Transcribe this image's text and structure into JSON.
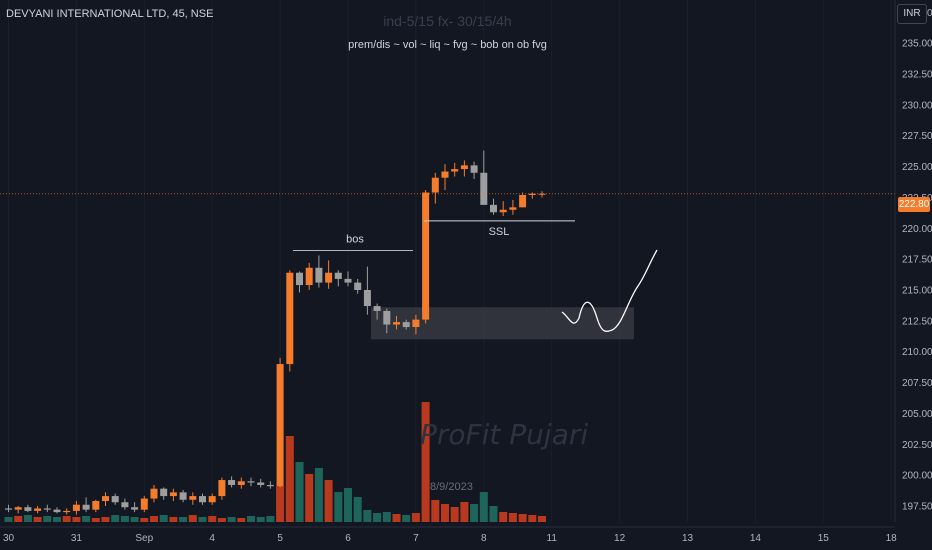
{
  "header": {
    "symbol_title": "DEVYANI INTERNATIONAL LTD, 45, NSE",
    "watermark_line1": "ind-5/15 fx- 30/15/4h",
    "watermark_line2": "prem/dis ~ vol ~ liq ~ fvg ~ bob on ob fvg",
    "brand_watermark": "ProFit Pujari",
    "date_watermark": "8/9/2023",
    "currency_button": "INR"
  },
  "price_axis": {
    "current_price_label": "222.80",
    "tick_labels": [
      "237.50",
      "235.00",
      "232.50",
      "230.00",
      "227.50",
      "225.00",
      "222.50",
      "220.00",
      "217.50",
      "215.00",
      "212.50",
      "210.00",
      "207.50",
      "205.00",
      "202.50",
      "200.00",
      "197.50"
    ]
  },
  "colors": {
    "background": "#131722",
    "up": "#f57c2b",
    "down": "#9e9e9e",
    "vol_up": "#cc3d1f",
    "vol_down": "#1f6e62",
    "price_line": "#f57c2b",
    "zone": "#3b3d44"
  },
  "chart_data": {
    "type": "candlestick",
    "ylim": [
      196.2,
      238.5
    ],
    "x_tick_labels": [
      "30",
      "31",
      "Sep",
      "4",
      "5",
      "6",
      "7",
      "8",
      "11",
      "12",
      "13",
      "14",
      "15",
      "18"
    ],
    "x_tick_session_positions": [
      0,
      7,
      14,
      21,
      28,
      35,
      42,
      49,
      56,
      63,
      70,
      77,
      84,
      91
    ],
    "candles_ohlc": [
      [
        197.3,
        197.6,
        197.0,
        197.2
      ],
      [
        197.2,
        197.5,
        196.9,
        197.4
      ],
      [
        197.4,
        197.6,
        197.0,
        197.1
      ],
      [
        197.1,
        197.5,
        196.9,
        197.3
      ],
      [
        197.3,
        197.6,
        197.0,
        197.2
      ],
      [
        197.2,
        197.4,
        196.9,
        197.0
      ],
      [
        197.0,
        197.3,
        196.8,
        197.1
      ],
      [
        197.1,
        197.9,
        196.8,
        197.6
      ],
      [
        197.6,
        198.2,
        197.0,
        197.2
      ],
      [
        197.2,
        198.0,
        197.0,
        197.9
      ],
      [
        197.9,
        198.6,
        197.5,
        198.3
      ],
      [
        198.3,
        198.5,
        197.6,
        197.8
      ],
      [
        197.8,
        198.1,
        197.2,
        197.4
      ],
      [
        197.4,
        197.8,
        197.0,
        197.2
      ],
      [
        197.2,
        198.3,
        197.0,
        198.1
      ],
      [
        198.1,
        199.2,
        197.8,
        198.9
      ],
      [
        198.9,
        199.0,
        198.0,
        198.3
      ],
      [
        198.3,
        198.9,
        197.9,
        198.6
      ],
      [
        198.6,
        198.8,
        197.8,
        198.0
      ],
      [
        198.0,
        198.6,
        197.6,
        198.3
      ],
      [
        198.3,
        198.5,
        197.6,
        197.8
      ],
      [
        197.8,
        198.5,
        197.6,
        198.3
      ],
      [
        198.3,
        199.8,
        198.0,
        199.6
      ],
      [
        199.6,
        199.9,
        199.0,
        199.2
      ],
      [
        199.2,
        199.8,
        198.9,
        199.5
      ],
      [
        199.5,
        199.8,
        199.1,
        199.4
      ],
      [
        199.4,
        199.7,
        199.0,
        199.2
      ],
      [
        199.2,
        199.5,
        198.9,
        199.1
      ],
      [
        199.1,
        209.5,
        199.0,
        209.0
      ],
      [
        209.0,
        216.6,
        208.4,
        216.4
      ],
      [
        216.4,
        216.5,
        214.8,
        215.4
      ],
      [
        215.4,
        217.2,
        215.0,
        216.8
      ],
      [
        216.8,
        217.8,
        215.2,
        215.6
      ],
      [
        215.6,
        217.4,
        215.1,
        216.4
      ],
      [
        216.4,
        216.6,
        215.3,
        215.9
      ],
      [
        215.9,
        216.5,
        215.3,
        215.6
      ],
      [
        215.6,
        215.9,
        214.7,
        215.0
      ],
      [
        215.0,
        216.9,
        213.0,
        213.7
      ],
      [
        213.7,
        213.9,
        212.6,
        213.3
      ],
      [
        213.3,
        213.5,
        211.5,
        212.2
      ],
      [
        212.2,
        212.9,
        211.8,
        212.4
      ],
      [
        212.4,
        212.6,
        211.8,
        212.0
      ],
      [
        212.0,
        213.0,
        211.4,
        212.6
      ],
      [
        212.6,
        223.1,
        212.3,
        222.9
      ],
      [
        222.9,
        224.5,
        222.0,
        224.1
      ],
      [
        224.1,
        225.2,
        223.1,
        224.6
      ],
      [
        224.6,
        225.3,
        224.2,
        224.8
      ],
      [
        224.8,
        225.5,
        224.2,
        225.1
      ],
      [
        225.1,
        225.4,
        224.0,
        224.5
      ],
      [
        224.5,
        226.3,
        221.9,
        221.9
      ],
      [
        221.9,
        222.4,
        221.1,
        221.3
      ],
      [
        221.3,
        222.2,
        221.0,
        221.5
      ],
      [
        221.5,
        222.3,
        221.1,
        221.7
      ],
      [
        221.7,
        222.9,
        221.7,
        222.7
      ],
      [
        222.7,
        222.9,
        222.4,
        222.8
      ],
      [
        222.8,
        223.0,
        222.5,
        222.8
      ]
    ],
    "volume_heights": [
      5,
      6,
      7,
      5,
      6,
      5,
      6,
      5,
      6,
      4,
      5,
      7,
      6,
      5,
      4,
      6,
      7,
      5,
      5,
      7,
      5,
      6,
      4,
      5,
      4,
      6,
      5,
      6,
      36,
      86,
      60,
      48,
      54,
      42,
      30,
      34,
      25,
      12,
      9,
      10,
      8,
      7,
      9,
      120,
      22,
      18,
      15,
      20,
      18,
      30,
      16,
      10,
      9,
      8,
      7,
      6
    ],
    "annotations": {
      "bos_label": "bos",
      "ssl_label": "SSL",
      "bos_level": 218.2,
      "ssl_level": 220.6,
      "zone_top": 213.6,
      "zone_bottom": 211.0,
      "current_price": 222.8
    }
  }
}
